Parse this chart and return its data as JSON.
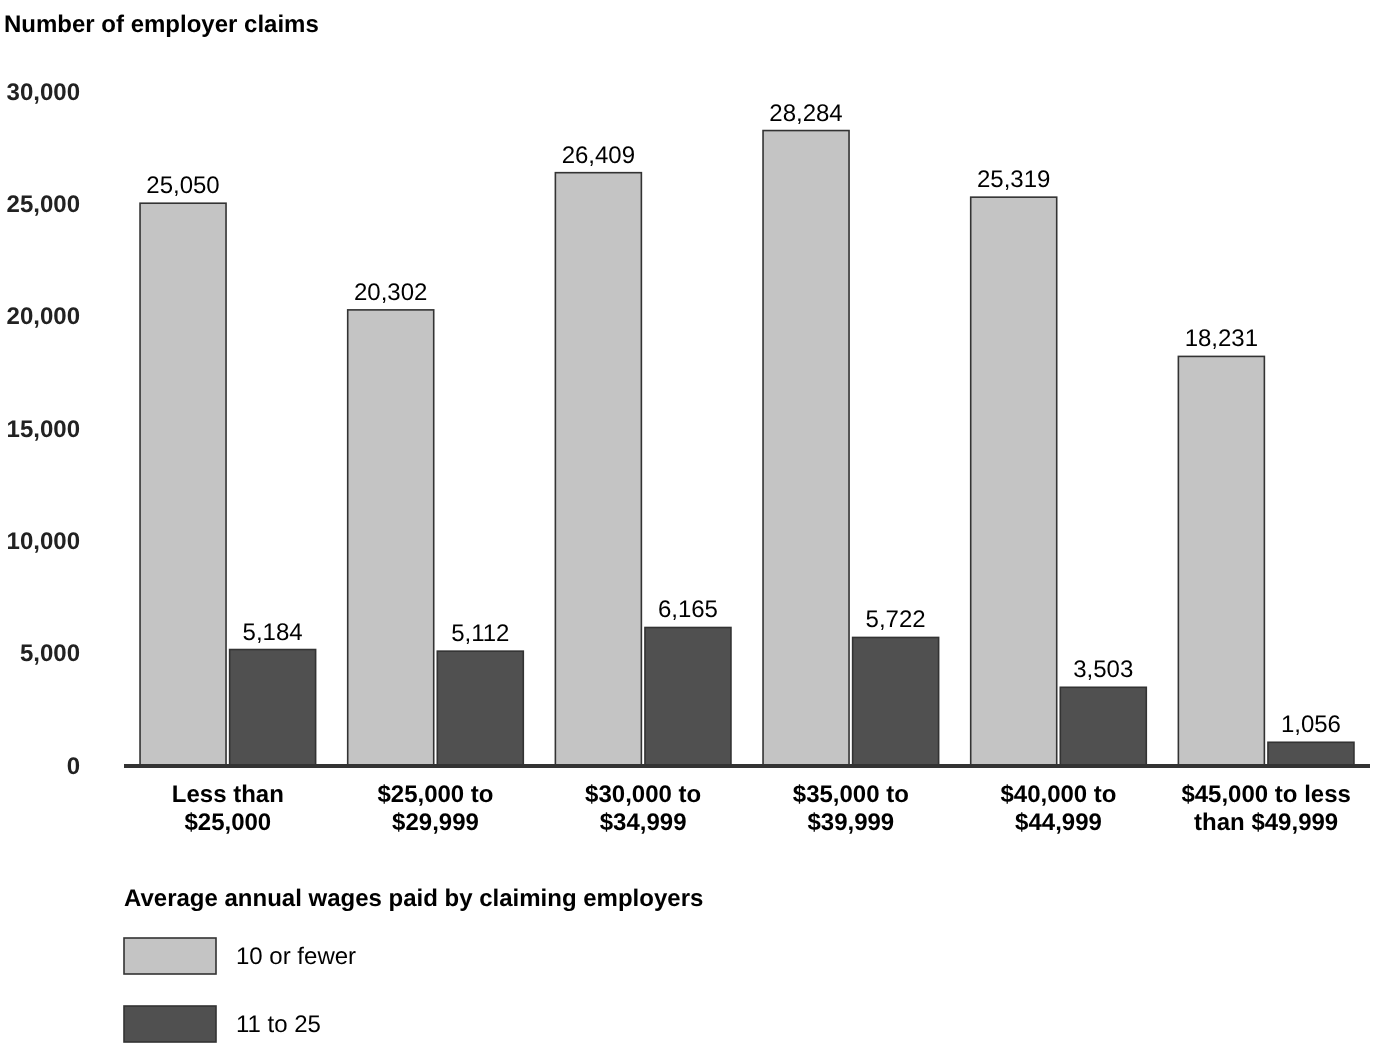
{
  "chart_data": {
    "type": "bar",
    "ylabel": "Number of employer claims",
    "xlabel": "Average annual wages paid by claiming employers",
    "categories": [
      "Less than $25,000",
      "$25,000 to $29,999",
      "$30,000 to $34,999",
      "$35,000 to $39,999",
      "$40,000 to $44,999",
      "$45,000 to less than $49,999"
    ],
    "series": [
      {
        "name": "10 or fewer",
        "color": "#c4c4c4",
        "values": [
          25050,
          20302,
          26409,
          28284,
          25319,
          18231
        ],
        "value_labels": [
          "25,050",
          "20,302",
          "26,409",
          "28,284",
          "25,319",
          "18,231"
        ]
      },
      {
        "name": "11 to 25",
        "color": "#505050",
        "values": [
          5184,
          5112,
          6165,
          5722,
          3503,
          1056
        ],
        "value_labels": [
          "5,184",
          "5,112",
          "6,165",
          "5,722",
          "3,503",
          "1,056"
        ]
      }
    ],
    "ylim": [
      0,
      30000
    ],
    "yticks": [
      {
        "value": 0,
        "label": "0"
      },
      {
        "value": 5000,
        "label": "5,000"
      },
      {
        "value": 10000,
        "label": "10,000"
      },
      {
        "value": 15000,
        "label": "15,000"
      },
      {
        "value": 20000,
        "label": "20,000"
      },
      {
        "value": 25000,
        "label": "25,000"
      },
      {
        "value": 30000,
        "label": "30,000"
      }
    ],
    "grid": false,
    "legend": "bottom left"
  }
}
